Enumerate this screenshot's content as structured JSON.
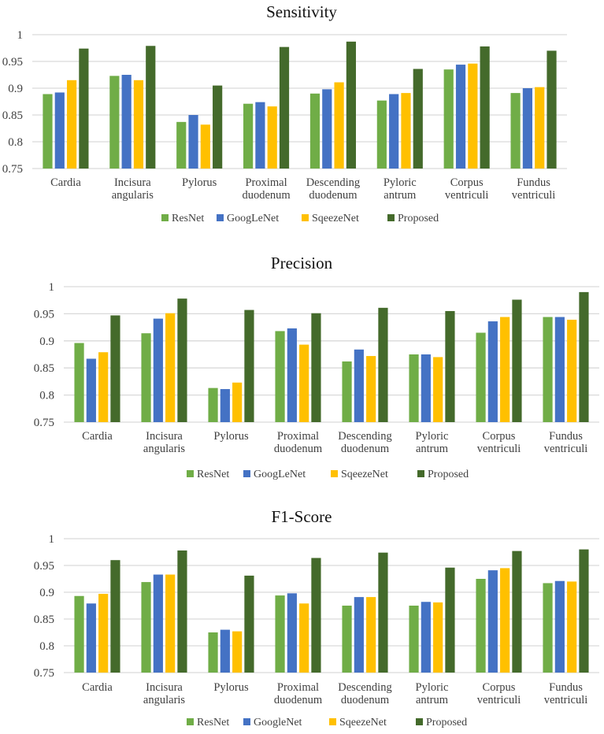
{
  "colors": {
    "ResNet": "#70ad47",
    "GoogLeNet": "#4472c4",
    "SqueezeNet": "#ffc000",
    "Proposed": "#446a2b",
    "grid": "#d9d9d9"
  },
  "chart_data": [
    {
      "type": "bar",
      "title": "Sensitivity",
      "ylim": [
        0.75,
        1
      ],
      "yticks": [
        "0.75",
        "0.8",
        "0.85",
        "0.9",
        "0.95",
        "1"
      ],
      "grid": true,
      "legend_position": "bottom",
      "categories": [
        [
          "Cardia"
        ],
        [
          "Incisura",
          "angularis"
        ],
        [
          "Pylorus"
        ],
        [
          "Proximal",
          "duodenum"
        ],
        [
          "Descending",
          "duodenum"
        ],
        [
          "Pyloric",
          "antrum"
        ],
        [
          "Corpus",
          "ventriculi"
        ],
        [
          "Fundus",
          "ventriculi"
        ]
      ],
      "series": [
        {
          "name": "ResNet",
          "values": [
            0.889,
            0.923,
            0.837,
            0.871,
            0.89,
            0.877,
            0.935,
            0.891
          ]
        },
        {
          "name": "GoogLeNet",
          "values": [
            0.892,
            0.925,
            0.85,
            0.874,
            0.898,
            0.889,
            0.944,
            0.9
          ]
        },
        {
          "name": "SqeezeNet",
          "values": [
            0.915,
            0.915,
            0.832,
            0.866,
            0.911,
            0.891,
            0.946,
            0.902
          ]
        },
        {
          "name": "Proposed",
          "values": [
            0.974,
            0.979,
            0.905,
            0.977,
            0.987,
            0.936,
            0.978,
            0.97
          ]
        }
      ]
    },
    {
      "type": "bar",
      "title": "Precision",
      "ylim": [
        0.75,
        1
      ],
      "yticks": [
        "0.75",
        "0.8",
        "0.85",
        "0.9",
        "0.95",
        "1"
      ],
      "grid": true,
      "legend_position": "bottom",
      "categories": [
        [
          "Cardia"
        ],
        [
          "Incisura",
          "angularis"
        ],
        [
          "Pylorus"
        ],
        [
          "Proximal",
          "duodenum"
        ],
        [
          "Descending",
          "duodenum"
        ],
        [
          "Pyloric",
          "antrum"
        ],
        [
          "Corpus",
          "ventriculi"
        ],
        [
          "Fundus",
          "ventriculi"
        ]
      ],
      "series": [
        {
          "name": "ResNet",
          "values": [
            0.896,
            0.914,
            0.813,
            0.918,
            0.862,
            0.875,
            0.915,
            0.944
          ]
        },
        {
          "name": "GoogLeNet",
          "values": [
            0.867,
            0.941,
            0.811,
            0.923,
            0.884,
            0.875,
            0.936,
            0.944
          ]
        },
        {
          "name": "SqeezeNet",
          "values": [
            0.879,
            0.951,
            0.823,
            0.893,
            0.872,
            0.87,
            0.944,
            0.939
          ]
        },
        {
          "name": "Proposed",
          "values": [
            0.947,
            0.978,
            0.957,
            0.951,
            0.961,
            0.955,
            0.976,
            0.99
          ]
        }
      ]
    },
    {
      "type": "bar",
      "title": "F1-Score",
      "ylim": [
        0.75,
        1
      ],
      "yticks": [
        "0.75",
        "0.8",
        "0.85",
        "0.9",
        "0.95",
        "1"
      ],
      "grid": true,
      "legend_position": "bottom",
      "categories": [
        [
          "Cardia"
        ],
        [
          "Incisura",
          "angularis"
        ],
        [
          "Pylorus"
        ],
        [
          "Proximal",
          "duodenum"
        ],
        [
          "Descending",
          "duodenum"
        ],
        [
          "Pyloric",
          "antrum"
        ],
        [
          "Corpus",
          "ventriculi"
        ],
        [
          "Fundus",
          "ventriculi"
        ]
      ],
      "series": [
        {
          "name": "ResNet",
          "values": [
            0.893,
            0.919,
            0.825,
            0.894,
            0.875,
            0.875,
            0.925,
            0.917
          ]
        },
        {
          "name": "GoogleNet",
          "values": [
            0.879,
            0.933,
            0.83,
            0.898,
            0.891,
            0.882,
            0.941,
            0.921
          ]
        },
        {
          "name": "SqeezeNet",
          "values": [
            0.897,
            0.933,
            0.827,
            0.879,
            0.891,
            0.881,
            0.945,
            0.92
          ]
        },
        {
          "name": "Proposed",
          "values": [
            0.96,
            0.978,
            0.931,
            0.964,
            0.974,
            0.946,
            0.977,
            0.98
          ]
        }
      ]
    }
  ]
}
